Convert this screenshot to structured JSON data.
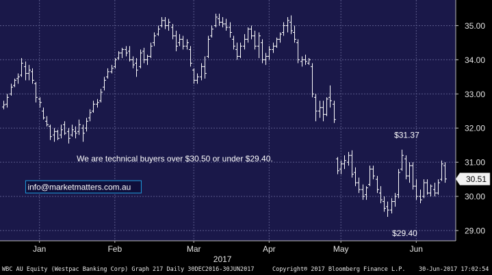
{
  "chart_data": {
    "type": "ohlc",
    "background": "#1a1849",
    "bar_color": "#ffffff",
    "grid": true,
    "grid_color": "#5a5a8a",
    "y_axis_side": "right",
    "ylim": [
      28.7,
      35.75
    ],
    "y_ticks": [
      "35.00",
      "34.00",
      "33.00",
      "32.00",
      "31.00",
      "30.00",
      "29.00"
    ],
    "y_tick_values": [
      35,
      34,
      33,
      32,
      31,
      30,
      29
    ],
    "x_ticks": [
      "Jan",
      "Feb",
      "Mar",
      "Apr",
      "May",
      "Jun"
    ],
    "x_tick_positions": [
      10,
      31,
      53,
      74,
      94,
      115
    ],
    "x_label": "2017",
    "last_price_label": "30.51",
    "last_price": 30.51,
    "x_range": [
      -1,
      126
    ],
    "annotations": {
      "comment": "We are technical buyers over $30.50 or under $29.40.",
      "high_label": "$31.37",
      "low_label": "$29.40",
      "website": "info@marketmatters.com.au"
    },
    "annotation_anchors": {
      "comment": [
        28,
        31.1
      ],
      "high_label": [
        114,
        31.37
      ],
      "low_label": [
        110,
        29.4
      ],
      "website": [
        9,
        30.28
      ]
    },
    "ohlc": [
      {
        "x": 0,
        "o": 32.62,
        "h": 32.8,
        "l": 32.55,
        "c": 32.68
      },
      {
        "x": 1,
        "o": 32.7,
        "h": 33.0,
        "l": 32.6,
        "c": 32.9
      },
      {
        "x": 2,
        "o": 33.0,
        "h": 33.3,
        "l": 32.95,
        "c": 33.2
      },
      {
        "x": 3,
        "o": 33.25,
        "h": 33.45,
        "l": 33.2,
        "c": 33.4
      },
      {
        "x": 4,
        "o": 33.45,
        "h": 33.6,
        "l": 33.3,
        "c": 33.5
      },
      {
        "x": 5,
        "o": 33.55,
        "h": 34.05,
        "l": 33.5,
        "c": 33.9
      },
      {
        "x": 6,
        "o": 33.8,
        "h": 33.95,
        "l": 33.4,
        "c": 33.6
      },
      {
        "x": 7,
        "o": 33.6,
        "h": 33.85,
        "l": 33.4,
        "c": 33.7
      },
      {
        "x": 8,
        "o": 33.65,
        "h": 33.75,
        "l": 33.3,
        "c": 33.4
      },
      {
        "x": 9,
        "o": 33.3,
        "h": 33.35,
        "l": 32.75,
        "c": 32.9
      },
      {
        "x": 10,
        "o": 32.85,
        "h": 32.9,
        "l": 32.6,
        "c": 32.75
      },
      {
        "x": 11,
        "o": 32.5,
        "h": 32.6,
        "l": 32.25,
        "c": 32.3
      },
      {
        "x": 12,
        "o": 32.2,
        "h": 32.35,
        "l": 32.05,
        "c": 32.1
      },
      {
        "x": 13,
        "o": 32.05,
        "h": 32.1,
        "l": 31.65,
        "c": 31.75
      },
      {
        "x": 14,
        "o": 31.8,
        "h": 32.0,
        "l": 31.6,
        "c": 31.9
      },
      {
        "x": 15,
        "o": 31.9,
        "h": 31.95,
        "l": 31.65,
        "c": 31.7
      },
      {
        "x": 16,
        "o": 31.8,
        "h": 32.1,
        "l": 31.7,
        "c": 31.95
      },
      {
        "x": 17,
        "o": 32.1,
        "h": 32.2,
        "l": 31.8,
        "c": 31.85
      },
      {
        "x": 18,
        "o": 31.9,
        "h": 32.0,
        "l": 31.55,
        "c": 31.7
      },
      {
        "x": 19,
        "o": 31.8,
        "h": 32.1,
        "l": 31.75,
        "c": 31.95
      },
      {
        "x": 20,
        "o": 31.9,
        "h": 32.05,
        "l": 31.7,
        "c": 31.85
      },
      {
        "x": 21,
        "o": 31.9,
        "h": 32.25,
        "l": 31.8,
        "c": 32.1
      },
      {
        "x": 22,
        "o": 32.0,
        "h": 32.1,
        "l": 31.6,
        "c": 31.85
      },
      {
        "x": 23,
        "o": 32.0,
        "h": 32.3,
        "l": 31.9,
        "c": 32.2
      },
      {
        "x": 24,
        "o": 32.3,
        "h": 32.55,
        "l": 32.2,
        "c": 32.45
      },
      {
        "x": 25,
        "o": 32.5,
        "h": 32.8,
        "l": 32.45,
        "c": 32.7
      },
      {
        "x": 26,
        "o": 32.7,
        "h": 32.85,
        "l": 32.6,
        "c": 32.75
      },
      {
        "x": 27,
        "o": 32.8,
        "h": 33.15,
        "l": 32.75,
        "c": 33.05
      },
      {
        "x": 28,
        "o": 33.2,
        "h": 33.5,
        "l": 33.1,
        "c": 33.4
      },
      {
        "x": 29,
        "o": 33.5,
        "h": 33.75,
        "l": 33.45,
        "c": 33.65
      },
      {
        "x": 30,
        "o": 33.65,
        "h": 33.85,
        "l": 33.6,
        "c": 33.75
      },
      {
        "x": 31,
        "o": 33.8,
        "h": 34.05,
        "l": 33.75,
        "c": 34.0
      },
      {
        "x": 32,
        "o": 34.05,
        "h": 34.25,
        "l": 34.0,
        "c": 34.2
      },
      {
        "x": 33,
        "o": 34.2,
        "h": 34.35,
        "l": 34.05,
        "c": 34.3
      },
      {
        "x": 34,
        "o": 34.3,
        "h": 34.4,
        "l": 34.1,
        "c": 34.2
      },
      {
        "x": 35,
        "o": 34.25,
        "h": 34.4,
        "l": 33.95,
        "c": 34.0
      },
      {
        "x": 36,
        "o": 34.0,
        "h": 34.1,
        "l": 33.75,
        "c": 33.85
      },
      {
        "x": 37,
        "o": 33.9,
        "h": 34.05,
        "l": 33.5,
        "c": 33.7
      },
      {
        "x": 38,
        "o": 33.8,
        "h": 34.3,
        "l": 33.75,
        "c": 34.2
      },
      {
        "x": 39,
        "o": 34.25,
        "h": 34.35,
        "l": 33.9,
        "c": 34.0
      },
      {
        "x": 40,
        "o": 34.0,
        "h": 34.15,
        "l": 33.85,
        "c": 34.1
      },
      {
        "x": 41,
        "o": 34.1,
        "h": 34.5,
        "l": 34.05,
        "c": 34.4
      },
      {
        "x": 42,
        "o": 34.5,
        "h": 34.8,
        "l": 34.4,
        "c": 34.7
      },
      {
        "x": 43,
        "o": 34.75,
        "h": 35.0,
        "l": 34.7,
        "c": 34.9
      },
      {
        "x": 44,
        "o": 35.0,
        "h": 35.25,
        "l": 34.95,
        "c": 35.15
      },
      {
        "x": 45,
        "o": 35.15,
        "h": 35.25,
        "l": 34.9,
        "c": 35.0
      },
      {
        "x": 46,
        "o": 35.0,
        "h": 35.2,
        "l": 34.85,
        "c": 35.1
      },
      {
        "x": 47,
        "o": 34.95,
        "h": 35.05,
        "l": 34.6,
        "c": 34.7
      },
      {
        "x": 48,
        "o": 34.7,
        "h": 34.85,
        "l": 34.25,
        "c": 34.4
      },
      {
        "x": 49,
        "o": 34.5,
        "h": 34.75,
        "l": 34.4,
        "c": 34.6
      },
      {
        "x": 50,
        "o": 34.6,
        "h": 34.7,
        "l": 34.3,
        "c": 34.4
      },
      {
        "x": 51,
        "o": 34.4,
        "h": 34.6,
        "l": 34.3,
        "c": 34.5
      },
      {
        "x": 52,
        "o": 34.3,
        "h": 34.4,
        "l": 33.8,
        "c": 33.9
      },
      {
        "x": 53,
        "o": 33.7,
        "h": 33.75,
        "l": 33.3,
        "c": 33.4
      },
      {
        "x": 54,
        "o": 33.4,
        "h": 33.6,
        "l": 33.3,
        "c": 33.5
      },
      {
        "x": 55,
        "o": 33.5,
        "h": 33.9,
        "l": 33.4,
        "c": 33.8
      },
      {
        "x": 56,
        "o": 33.8,
        "h": 34.1,
        "l": 33.45,
        "c": 33.6
      },
      {
        "x": 57,
        "o": 34.1,
        "h": 34.7,
        "l": 34.05,
        "c": 34.6
      },
      {
        "x": 58,
        "o": 34.7,
        "h": 35.0,
        "l": 34.65,
        "c": 34.9
      },
      {
        "x": 59,
        "o": 35.0,
        "h": 35.35,
        "l": 34.95,
        "c": 35.25
      },
      {
        "x": 60,
        "o": 35.2,
        "h": 35.35,
        "l": 35.0,
        "c": 35.1
      },
      {
        "x": 61,
        "o": 35.1,
        "h": 35.25,
        "l": 34.95,
        "c": 35.05
      },
      {
        "x": 62,
        "o": 35.05,
        "h": 35.2,
        "l": 34.85,
        "c": 34.95
      },
      {
        "x": 63,
        "o": 34.95,
        "h": 35.1,
        "l": 34.65,
        "c": 34.8
      },
      {
        "x": 64,
        "o": 34.6,
        "h": 34.7,
        "l": 34.3,
        "c": 34.4
      },
      {
        "x": 65,
        "o": 34.3,
        "h": 34.5,
        "l": 34.0,
        "c": 34.1
      },
      {
        "x": 66,
        "o": 34.1,
        "h": 34.5,
        "l": 34.05,
        "c": 34.4
      },
      {
        "x": 67,
        "o": 34.4,
        "h": 34.75,
        "l": 34.3,
        "c": 34.6
      },
      {
        "x": 68,
        "o": 34.6,
        "h": 34.95,
        "l": 34.5,
        "c": 34.9
      },
      {
        "x": 69,
        "o": 34.9,
        "h": 35.0,
        "l": 34.6,
        "c": 34.7
      },
      {
        "x": 70,
        "o": 34.7,
        "h": 34.85,
        "l": 34.3,
        "c": 34.4
      },
      {
        "x": 71,
        "o": 34.4,
        "h": 34.8,
        "l": 34.05,
        "c": 34.7
      },
      {
        "x": 72,
        "o": 34.5,
        "h": 34.6,
        "l": 33.9,
        "c": 34.0
      },
      {
        "x": 73,
        "o": 34.0,
        "h": 34.2,
        "l": 33.85,
        "c": 34.1
      },
      {
        "x": 74,
        "o": 34.1,
        "h": 34.4,
        "l": 34.0,
        "c": 34.3
      },
      {
        "x": 75,
        "o": 34.3,
        "h": 34.5,
        "l": 34.2,
        "c": 34.4
      },
      {
        "x": 76,
        "o": 34.4,
        "h": 34.65,
        "l": 34.35,
        "c": 34.6
      },
      {
        "x": 77,
        "o": 34.6,
        "h": 34.8,
        "l": 34.5,
        "c": 34.75
      },
      {
        "x": 78,
        "o": 34.8,
        "h": 35.1,
        "l": 34.7,
        "c": 35.0
      },
      {
        "x": 79,
        "o": 35.0,
        "h": 35.25,
        "l": 34.8,
        "c": 35.15
      },
      {
        "x": 80,
        "o": 35.1,
        "h": 35.3,
        "l": 34.75,
        "c": 34.85
      },
      {
        "x": 81,
        "o": 34.8,
        "h": 35.0,
        "l": 34.5,
        "c": 34.6
      },
      {
        "x": 82,
        "o": 34.5,
        "h": 34.6,
        "l": 33.9,
        "c": 34.0
      },
      {
        "x": 83,
        "o": 33.95,
        "h": 34.1,
        "l": 33.8,
        "c": 34.0
      },
      {
        "x": 84,
        "o": 34.0,
        "h": 34.15,
        "l": 33.85,
        "c": 33.95
      },
      {
        "x": 85,
        "o": 33.9,
        "h": 34.05,
        "l": 33.85,
        "c": 34.0
      },
      {
        "x": 86,
        "o": 33.8,
        "h": 33.9,
        "l": 32.9,
        "c": 33.0
      },
      {
        "x": 87,
        "o": 32.9,
        "h": 33.0,
        "l": 32.2,
        "c": 32.5
      },
      {
        "x": 88,
        "o": 32.5,
        "h": 32.8,
        "l": 32.3,
        "c": 32.6
      },
      {
        "x": 89,
        "o": 32.6,
        "h": 32.8,
        "l": 32.2,
        "c": 32.4
      },
      {
        "x": 90,
        "o": 32.4,
        "h": 32.9,
        "l": 32.35,
        "c": 32.85
      },
      {
        "x": 91,
        "o": 32.9,
        "h": 33.25,
        "l": 32.6,
        "c": 32.8
      },
      {
        "x": 92,
        "o": 32.7,
        "h": 32.8,
        "l": 32.15,
        "c": 32.25
      },
      {
        "x": 93,
        "o": 31.1,
        "h": 31.15,
        "l": 30.65,
        "c": 30.75
      },
      {
        "x": 94,
        "o": 30.8,
        "h": 31.05,
        "l": 30.65,
        "c": 30.95
      },
      {
        "x": 95,
        "o": 30.95,
        "h": 31.2,
        "l": 30.8,
        "c": 31.05
      },
      {
        "x": 96,
        "o": 31.0,
        "h": 31.3,
        "l": 30.9,
        "c": 31.2
      },
      {
        "x": 97,
        "o": 31.2,
        "h": 31.35,
        "l": 30.55,
        "c": 30.65
      },
      {
        "x": 98,
        "o": 30.7,
        "h": 30.85,
        "l": 30.3,
        "c": 30.4
      },
      {
        "x": 99,
        "o": 30.4,
        "h": 30.55,
        "l": 30.1,
        "c": 30.2
      },
      {
        "x": 100,
        "o": 30.2,
        "h": 30.35,
        "l": 29.9,
        "c": 30.0
      },
      {
        "x": 101,
        "o": 30.05,
        "h": 30.3,
        "l": 29.9,
        "c": 30.25
      },
      {
        "x": 102,
        "o": 30.35,
        "h": 30.9,
        "l": 30.3,
        "c": 30.8
      },
      {
        "x": 103,
        "o": 30.8,
        "h": 30.9,
        "l": 30.5,
        "c": 30.6
      },
      {
        "x": 104,
        "o": 30.5,
        "h": 30.6,
        "l": 30.1,
        "c": 30.2
      },
      {
        "x": 105,
        "o": 30.1,
        "h": 30.3,
        "l": 29.8,
        "c": 29.9
      },
      {
        "x": 106,
        "o": 29.85,
        "h": 30.0,
        "l": 29.55,
        "c": 29.65
      },
      {
        "x": 107,
        "o": 29.7,
        "h": 29.85,
        "l": 29.4,
        "c": 29.6
      },
      {
        "x": 108,
        "o": 29.6,
        "h": 29.95,
        "l": 29.5,
        "c": 29.85
      },
      {
        "x": 109,
        "o": 29.85,
        "h": 30.1,
        "l": 29.7,
        "c": 30.0
      },
      {
        "x": 110,
        "o": 30.05,
        "h": 30.8,
        "l": 29.95,
        "c": 30.7
      },
      {
        "x": 111,
        "o": 30.8,
        "h": 31.37,
        "l": 30.75,
        "c": 31.2
      },
      {
        "x": 112,
        "o": 31.1,
        "h": 31.2,
        "l": 30.5,
        "c": 30.6
      },
      {
        "x": 113,
        "o": 30.6,
        "h": 31.0,
        "l": 30.4,
        "c": 30.9
      },
      {
        "x": 114,
        "o": 30.9,
        "h": 31.0,
        "l": 30.2,
        "c": 30.3
      },
      {
        "x": 115,
        "o": 30.3,
        "h": 30.5,
        "l": 29.9,
        "c": 30.0
      },
      {
        "x": 116,
        "o": 30.0,
        "h": 30.2,
        "l": 29.8,
        "c": 29.9
      },
      {
        "x": 117,
        "o": 30.0,
        "h": 30.5,
        "l": 29.95,
        "c": 30.4
      },
      {
        "x": 118,
        "o": 30.4,
        "h": 30.5,
        "l": 30.05,
        "c": 30.1
      },
      {
        "x": 119,
        "o": 30.1,
        "h": 30.35,
        "l": 30.0,
        "c": 30.3
      },
      {
        "x": 120,
        "o": 30.2,
        "h": 30.4,
        "l": 30.0,
        "c": 30.1
      },
      {
        "x": 121,
        "o": 30.1,
        "h": 30.5,
        "l": 30.05,
        "c": 30.4
      },
      {
        "x": 122,
        "o": 30.5,
        "h": 31.05,
        "l": 30.45,
        "c": 30.95
      },
      {
        "x": 123,
        "o": 30.9,
        "h": 31.0,
        "l": 30.4,
        "c": 30.51
      }
    ]
  },
  "footer": {
    "left": "WBC AU Equity (Westpac Banking Corp) Graph 217  Daily 30DEC2016-30JUN2017",
    "center": "Copyright® 2017 Bloomberg Finance L.P.",
    "right": "30-Jun-2017 17:02:54"
  }
}
